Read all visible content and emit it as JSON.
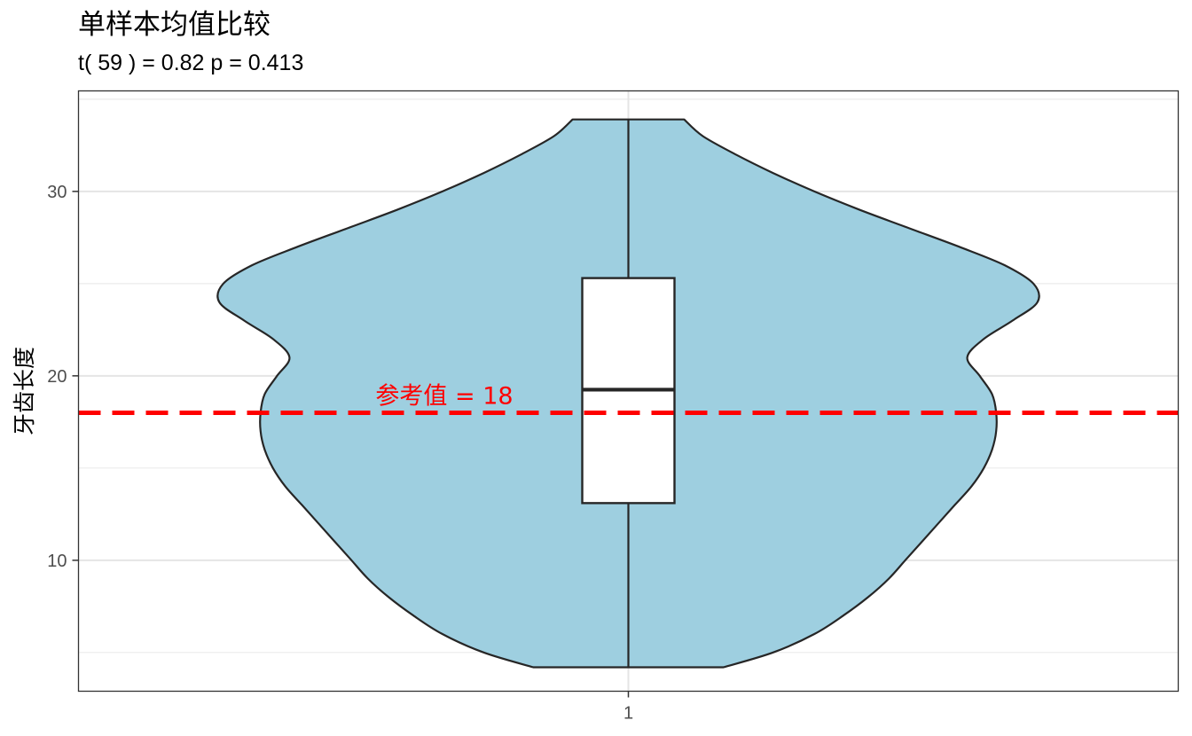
{
  "chart_data": {
    "type": "violin",
    "title": "单样本均值比较",
    "subtitle": "t( 59 ) = 0.82 p = 0.413",
    "xlabel": "",
    "ylabel": "牙齿长度",
    "categories": [
      "1"
    ],
    "ylim": [
      2.9,
      35.45
    ],
    "yticks": [
      10,
      20,
      30
    ],
    "grid": true,
    "legend": "none",
    "violin": {
      "color_fill": "#9ecfe0",
      "color_line": "#262626",
      "min": 4.2,
      "max": 33.9,
      "density_profile": [
        [
          4.2,
          0.23
        ],
        [
          5.0,
          0.35
        ],
        [
          6.0,
          0.45
        ],
        [
          7.0,
          0.52
        ],
        [
          8.0,
          0.58
        ],
        [
          9.0,
          0.63
        ],
        [
          10.0,
          0.67
        ],
        [
          11.0,
          0.71
        ],
        [
          12.0,
          0.75
        ],
        [
          13.0,
          0.79
        ],
        [
          14.0,
          0.83
        ],
        [
          15.0,
          0.86
        ],
        [
          16.0,
          0.88
        ],
        [
          17.0,
          0.89
        ],
        [
          18.0,
          0.89
        ],
        [
          19.0,
          0.88
        ],
        [
          20.0,
          0.85
        ],
        [
          21.0,
          0.82
        ],
        [
          22.0,
          0.86
        ],
        [
          23.0,
          0.93
        ],
        [
          24.0,
          0.99
        ],
        [
          25.0,
          0.98
        ],
        [
          26.0,
          0.91
        ],
        [
          27.0,
          0.8
        ],
        [
          28.0,
          0.68
        ],
        [
          29.0,
          0.56
        ],
        [
          30.0,
          0.45
        ],
        [
          31.0,
          0.35
        ],
        [
          32.0,
          0.26
        ],
        [
          33.0,
          0.18
        ],
        [
          33.9,
          0.135
        ]
      ]
    },
    "boxplot": {
      "whisker_low": 4.2,
      "q1": 13.1,
      "median": 19.25,
      "q3": 25.3,
      "whisker_high": 33.9,
      "color_fill": "#ffffff",
      "color_line": "#262626"
    },
    "reference_line": {
      "value": 18,
      "label": "参考值 = 18",
      "color": "#ff0000",
      "style": "dashed"
    }
  }
}
